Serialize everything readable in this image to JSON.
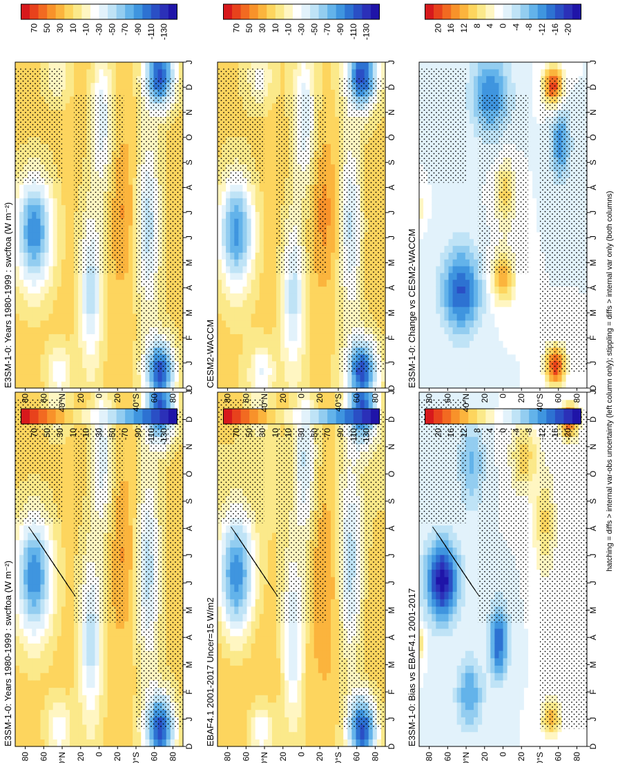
{
  "footnote": "hatching = diffs > internal var-obs uncertainty (left column only); stippling = diffs > internal var only (both columns)",
  "palettes": {
    "abs": [
      "#d7191c",
      "#e8421c",
      "#f26a21",
      "#f8922a",
      "#fbb43d",
      "#fdd55e",
      "#fbe98a",
      "#fff6c2",
      "#ffffff",
      "#e2f2fb",
      "#bfe3f6",
      "#93cdf0",
      "#63b3ea",
      "#3f95df",
      "#2d72d2",
      "#2a4fc5",
      "#2b30b8",
      "#1f14a8"
    ],
    "diff": [
      "#d7191c",
      "#e8421c",
      "#f26a21",
      "#f8922a",
      "#fbb43d",
      "#fdd55e",
      "#fbe98a",
      "#fff6c2",
      "#ffffff",
      "#e2f2fb",
      "#bfe3f6",
      "#93cdf0",
      "#63b3ea",
      "#3f95df",
      "#2d72d2",
      "#2a4fc5",
      "#2b30b8",
      "#1f14a8"
    ]
  },
  "chart_data": [
    {
      "type": "heatmap",
      "title": "E3SM-1-0: Years 1980-1999 : swcftoa (W m⁻²)",
      "x_ticks": [
        "D",
        "J",
        "F",
        "M",
        "A",
        "M",
        "J",
        "J",
        "A",
        "S",
        "O",
        "N",
        "D",
        "J"
      ],
      "y_ticks": [
        "80",
        "60",
        "40°N",
        "20",
        "0",
        "20",
        "40°S",
        "60",
        "80"
      ],
      "colorbar_ticks": [
        "70",
        "50",
        "30",
        "10",
        "-10",
        "-30",
        "-50",
        "-70",
        "-90",
        "-110",
        "-130"
      ],
      "palette": "abs",
      "field": "mean",
      "hatching": true,
      "stippling": true,
      "value_range": [
        -140,
        80
      ]
    },
    {
      "type": "heatmap",
      "title": "E3SM-1-0: Years 1980-1999 : swcftoa (W m⁻²)",
      "x_ticks": [
        "D",
        "J",
        "F",
        "M",
        "A",
        "M",
        "J",
        "J",
        "A",
        "S",
        "O",
        "N",
        "D",
        "J"
      ],
      "y_ticks": [
        "80",
        "60",
        "40°N",
        "20",
        "0",
        "20",
        "40°S",
        "60",
        "80"
      ],
      "colorbar_ticks": [
        "70",
        "50",
        "30",
        "10",
        "-10",
        "-30",
        "-50",
        "-70",
        "-90",
        "-110",
        "-130"
      ],
      "palette": "abs",
      "field": "mean",
      "hatching": false,
      "stippling": true,
      "value_range": [
        -140,
        80
      ]
    },
    {
      "type": "heatmap",
      "title": "EBAF4.1 2001-2017 Uncer=15 W/m2",
      "x_ticks": [
        "D",
        "J",
        "F",
        "M",
        "A",
        "M",
        "J",
        "J",
        "A",
        "S",
        "O",
        "N",
        "D",
        "J"
      ],
      "y_ticks": [
        "80",
        "60",
        "40°N",
        "20",
        "0",
        "20",
        "40°S",
        "60",
        "80"
      ],
      "colorbar_ticks": [
        "70",
        "50",
        "30",
        "10",
        "-10",
        "-30",
        "-50",
        "-70",
        "-90",
        "-110",
        "-130"
      ],
      "palette": "abs",
      "field": "mean",
      "hatching": true,
      "stippling": true,
      "value_range": [
        -140,
        80
      ]
    },
    {
      "type": "heatmap",
      "title": "CESM2-WACCM",
      "x_ticks": [
        "D",
        "J",
        "F",
        "M",
        "A",
        "M",
        "J",
        "J",
        "A",
        "S",
        "O",
        "N",
        "D",
        "J"
      ],
      "y_ticks": [
        "80",
        "60",
        "40°N",
        "20",
        "0",
        "20",
        "40°S",
        "60",
        "80"
      ],
      "colorbar_ticks": [
        "70",
        "50",
        "30",
        "10",
        "-10",
        "-30",
        "-50",
        "-70",
        "-90",
        "-110",
        "-130"
      ],
      "palette": "abs",
      "field": "mean",
      "hatching": false,
      "stippling": true,
      "value_range": [
        -140,
        80
      ]
    },
    {
      "type": "heatmap",
      "title": "E3SM-1-0: Bias vs EBAF4.1 2001-2017",
      "x_ticks": [
        "D",
        "J",
        "F",
        "M",
        "A",
        "M",
        "J",
        "J",
        "A",
        "S",
        "O",
        "N",
        "D",
        "J"
      ],
      "y_ticks": [
        "80",
        "60",
        "40°N",
        "20",
        "0",
        "20",
        "40°S",
        "60",
        "80"
      ],
      "colorbar_ticks": [
        "20",
        "16",
        "12",
        "8",
        "4",
        "0",
        "-4",
        "-8",
        "-12",
        "-16",
        "-20"
      ],
      "palette": "diff",
      "field": "bias",
      "hatching": true,
      "stippling": true,
      "value_range": [
        -22,
        22
      ]
    },
    {
      "type": "heatmap",
      "title": "E3SM-1-0: Change vs CESM2-WACCM",
      "x_ticks": [
        "D",
        "J",
        "F",
        "M",
        "A",
        "M",
        "J",
        "J",
        "A",
        "S",
        "O",
        "N",
        "D",
        "J"
      ],
      "y_ticks": [
        "80",
        "60",
        "40°N",
        "20",
        "0",
        "20",
        "40°S",
        "60",
        "80"
      ],
      "colorbar_ticks": [
        "20",
        "16",
        "12",
        "8",
        "4",
        "0",
        "-4",
        "-8",
        "-12",
        "-16",
        "-20"
      ],
      "palette": "diff",
      "field": "change",
      "hatching": false,
      "stippling": true,
      "value_range": [
        -22,
        22
      ]
    }
  ]
}
